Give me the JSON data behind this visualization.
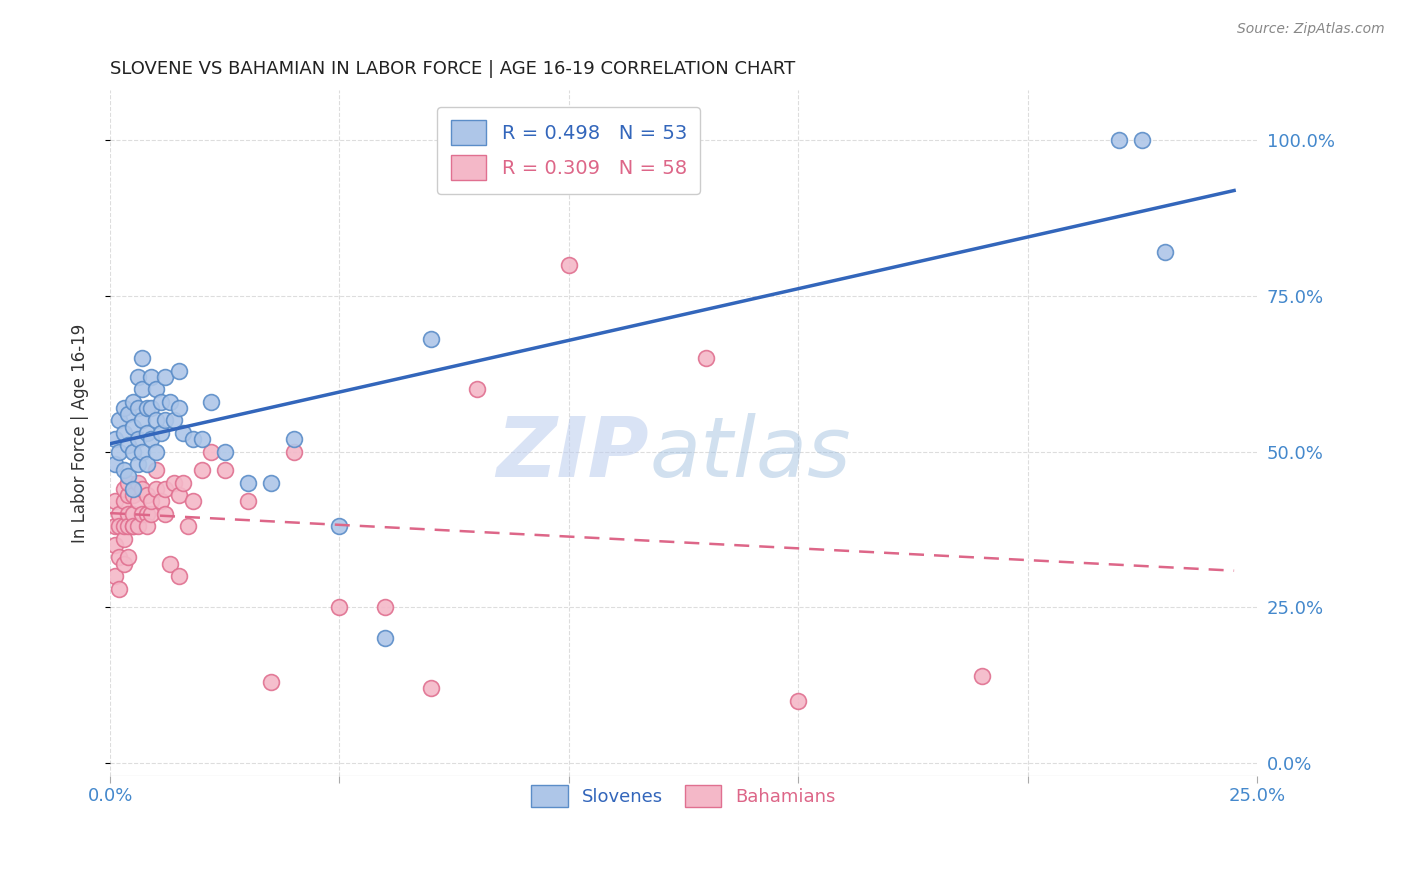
{
  "title": "SLOVENE VS BAHAMIAN IN LABOR FORCE | AGE 16-19 CORRELATION CHART",
  "source": "Source: ZipAtlas.com",
  "ylabel": "In Labor Force | Age 16-19",
  "xlim": [
    0.0,
    0.25
  ],
  "ylim": [
    -0.02,
    1.08
  ],
  "xtick_vals": [
    0.0,
    0.25
  ],
  "xtick_labels": [
    "0.0%",
    "25.0%"
  ],
  "ytick_vals": [
    0.0,
    0.25,
    0.5,
    0.75,
    1.0
  ],
  "ytick_labels": [
    "0.0%",
    "25.0%",
    "50.0%",
    "75.0%",
    "100.0%"
  ],
  "inner_xtick_vals": [
    0.05,
    0.1,
    0.15,
    0.2
  ],
  "slovene_color": "#aec6e8",
  "bahamian_color": "#f4b8c8",
  "slovene_edge": "#5b8dc8",
  "bahamian_edge": "#e07090",
  "slovene_line_color": "#3366bb",
  "bahamian_line_color": "#dd6688",
  "legend_r1": "R = 0.498",
  "legend_n1": "N = 53",
  "legend_r2": "R = 0.309",
  "legend_n2": "N = 58",
  "legend_label1": "Slovenes",
  "legend_label2": "Bahamians",
  "watermark_zip": "ZIP",
  "watermark_atlas": "atlas",
  "title_color": "#222222",
  "source_color": "#888888",
  "axis_color": "#4488CC",
  "grid_color": "#dddddd",
  "slovene_x": [
    0.001,
    0.001,
    0.002,
    0.002,
    0.003,
    0.003,
    0.003,
    0.004,
    0.004,
    0.004,
    0.005,
    0.005,
    0.005,
    0.005,
    0.006,
    0.006,
    0.006,
    0.006,
    0.007,
    0.007,
    0.007,
    0.007,
    0.008,
    0.008,
    0.008,
    0.009,
    0.009,
    0.009,
    0.01,
    0.01,
    0.01,
    0.011,
    0.011,
    0.012,
    0.012,
    0.013,
    0.014,
    0.015,
    0.015,
    0.016,
    0.018,
    0.02,
    0.022,
    0.025,
    0.03,
    0.035,
    0.04,
    0.05,
    0.06,
    0.07,
    0.22,
    0.225,
    0.23
  ],
  "slovene_y": [
    0.48,
    0.52,
    0.5,
    0.55,
    0.47,
    0.53,
    0.57,
    0.46,
    0.51,
    0.56,
    0.44,
    0.5,
    0.54,
    0.58,
    0.48,
    0.52,
    0.57,
    0.62,
    0.5,
    0.55,
    0.6,
    0.65,
    0.48,
    0.53,
    0.57,
    0.52,
    0.57,
    0.62,
    0.5,
    0.55,
    0.6,
    0.53,
    0.58,
    0.55,
    0.62,
    0.58,
    0.55,
    0.57,
    0.63,
    0.53,
    0.52,
    0.52,
    0.58,
    0.5,
    0.45,
    0.45,
    0.52,
    0.38,
    0.2,
    0.68,
    1.0,
    1.0,
    0.82
  ],
  "bahamian_x": [
    0.001,
    0.001,
    0.001,
    0.001,
    0.002,
    0.002,
    0.002,
    0.002,
    0.003,
    0.003,
    0.003,
    0.003,
    0.003,
    0.004,
    0.004,
    0.004,
    0.004,
    0.004,
    0.005,
    0.005,
    0.005,
    0.005,
    0.006,
    0.006,
    0.006,
    0.007,
    0.007,
    0.008,
    0.008,
    0.008,
    0.009,
    0.009,
    0.01,
    0.01,
    0.011,
    0.012,
    0.012,
    0.013,
    0.014,
    0.015,
    0.015,
    0.016,
    0.017,
    0.018,
    0.02,
    0.022,
    0.025,
    0.03,
    0.035,
    0.04,
    0.05,
    0.06,
    0.07,
    0.08,
    0.1,
    0.13,
    0.15,
    0.19
  ],
  "bahamian_y": [
    0.42,
    0.38,
    0.35,
    0.3,
    0.4,
    0.38,
    0.33,
    0.28,
    0.36,
    0.42,
    0.44,
    0.38,
    0.32,
    0.4,
    0.43,
    0.45,
    0.38,
    0.33,
    0.38,
    0.4,
    0.43,
    0.38,
    0.42,
    0.45,
    0.38,
    0.4,
    0.44,
    0.4,
    0.43,
    0.38,
    0.4,
    0.42,
    0.44,
    0.47,
    0.42,
    0.44,
    0.4,
    0.32,
    0.45,
    0.43,
    0.3,
    0.45,
    0.38,
    0.42,
    0.47,
    0.5,
    0.47,
    0.42,
    0.13,
    0.5,
    0.25,
    0.25,
    0.12,
    0.6,
    0.8,
    0.65,
    0.1,
    0.14
  ]
}
